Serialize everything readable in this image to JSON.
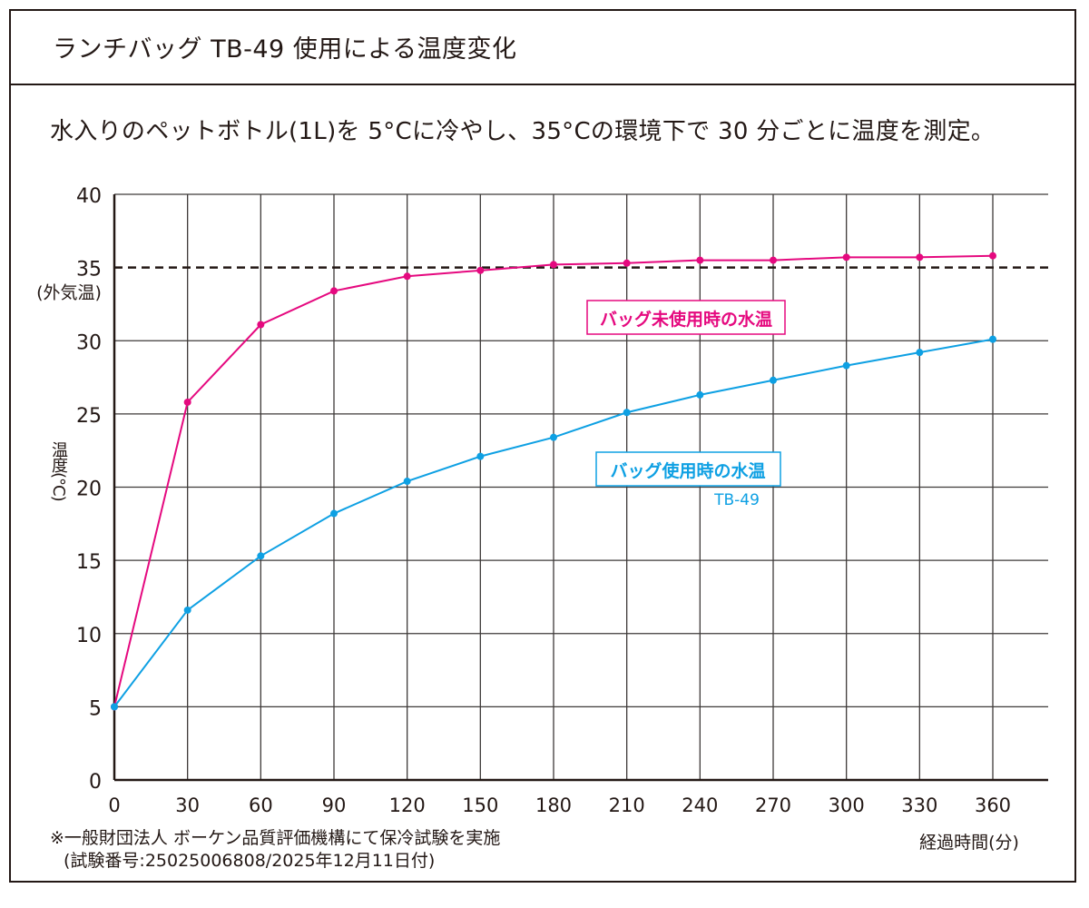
{
  "title": "ランチバッグ TB-49 使用による温度変化",
  "subtitle": "水入りのペットボトル(1L)を 5°Cに冷やし、35°Cの環境下で 30 分ごとに温度を測定。",
  "footnote": {
    "line1": "※一般財団法人 ボーケン品質評価機構にて保冷試験を実施",
    "line2": "(試験番号:25025006808/2025年12月11日付)"
  },
  "chart_data": {
    "type": "line",
    "xlabel": "経過時間(分)",
    "ylabel": "温度(°C)",
    "xlim": [
      0,
      380
    ],
    "ylim": [
      0,
      40
    ],
    "x": [
      0,
      30,
      60,
      90,
      120,
      150,
      180,
      210,
      240,
      270,
      300,
      330,
      360
    ],
    "x_ticks": [
      "0",
      "30",
      "60",
      "90",
      "120",
      "150",
      "180",
      "210",
      "240",
      "270",
      "300",
      "330",
      "360"
    ],
    "y_ticks": [
      "0",
      "5",
      "10",
      "15",
      "20",
      "25",
      "30",
      "35",
      "40"
    ],
    "grid": true,
    "reference_line": {
      "y": 35,
      "label": "(外気温)",
      "style": "dashed"
    },
    "series": [
      {
        "name": "バッグ未使用時の水温",
        "color": "#e5097f",
        "values": [
          5,
          25.8,
          31.1,
          33.4,
          34.4,
          34.8,
          35.2,
          35.3,
          35.5,
          35.5,
          35.7,
          35.7,
          35.8
        ]
      },
      {
        "name": "バッグ使用時の水温",
        "sublabel": "TB-49",
        "color": "#0ea0e3",
        "values": [
          5,
          11.6,
          15.3,
          18.2,
          20.4,
          22.1,
          23.4,
          25.1,
          26.3,
          27.3,
          28.3,
          29.2,
          30.1
        ]
      }
    ]
  }
}
